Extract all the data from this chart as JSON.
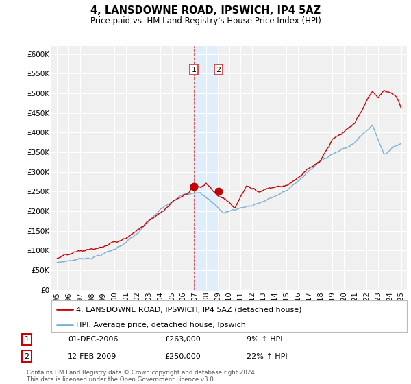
{
  "title": "4, LANSDOWNE ROAD, IPSWICH, IP4 5AZ",
  "subtitle": "Price paid vs. HM Land Registry's House Price Index (HPI)",
  "ylim": [
    0,
    620000
  ],
  "yticks": [
    0,
    50000,
    100000,
    150000,
    200000,
    250000,
    300000,
    350000,
    400000,
    450000,
    500000,
    550000,
    600000
  ],
  "ytick_labels": [
    "£0",
    "£50K",
    "£100K",
    "£150K",
    "£200K",
    "£250K",
    "£300K",
    "£350K",
    "£400K",
    "£450K",
    "£500K",
    "£550K",
    "£600K"
  ],
  "legend_line1": "4, LANSDOWNE ROAD, IPSWICH, IP4 5AZ (detached house)",
  "legend_line2": "HPI: Average price, detached house, Ipswich",
  "line1_color": "#cc0000",
  "line2_color": "#7ab0d4",
  "shade_color": "#ddeeff",
  "transaction1_year": 2006.917,
  "transaction1_price": 263000,
  "transaction2_year": 2009.083,
  "transaction2_price": 250000,
  "table_row1": [
    "1",
    "01-DEC-2006",
    "£263,000",
    "9% ↑ HPI"
  ],
  "table_row2": [
    "2",
    "12-FEB-2009",
    "£250,000",
    "22% ↑ HPI"
  ],
  "footer": "Contains HM Land Registry data © Crown copyright and database right 2024.\nThis data is licensed under the Open Government Licence v3.0.",
  "background_color": "#ffffff",
  "plot_bg_color": "#f0f0f0"
}
